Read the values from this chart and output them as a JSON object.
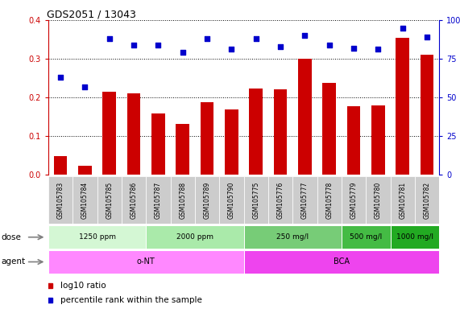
{
  "title": "GDS2051 / 13043",
  "samples": [
    "GSM105783",
    "GSM105784",
    "GSM105785",
    "GSM105786",
    "GSM105787",
    "GSM105788",
    "GSM105789",
    "GSM105790",
    "GSM105775",
    "GSM105776",
    "GSM105777",
    "GSM105778",
    "GSM105779",
    "GSM105780",
    "GSM105781",
    "GSM105782"
  ],
  "log10_ratio": [
    0.048,
    0.022,
    0.215,
    0.21,
    0.158,
    0.132,
    0.188,
    0.168,
    0.222,
    0.22,
    0.3,
    0.238,
    0.178,
    0.179,
    0.355,
    0.31
  ],
  "percentile_rank": [
    63,
    57,
    88,
    84,
    84,
    79,
    88,
    81,
    88,
    83,
    90,
    84,
    82,
    81,
    95,
    89
  ],
  "bar_color": "#cc0000",
  "dot_color": "#0000cc",
  "ylim_left": [
    0,
    0.4
  ],
  "ylim_right": [
    0,
    100
  ],
  "yticks_left": [
    0,
    0.1,
    0.2,
    0.3,
    0.4
  ],
  "yticks_right": [
    0,
    25,
    50,
    75,
    100
  ],
  "dose_groups": [
    {
      "label": "1250 ppm",
      "start": 0,
      "end": 4,
      "color": "#d4f7d4"
    },
    {
      "label": "2000 ppm",
      "start": 4,
      "end": 8,
      "color": "#aaeaaa"
    },
    {
      "label": "250 mg/l",
      "start": 8,
      "end": 12,
      "color": "#77cc77"
    },
    {
      "label": "500 mg/l",
      "start": 12,
      "end": 14,
      "color": "#44bb44"
    },
    {
      "label": "1000 mg/l",
      "start": 14,
      "end": 16,
      "color": "#22aa22"
    }
  ],
  "agent_groups": [
    {
      "label": "o-NT",
      "start": 0,
      "end": 8,
      "color": "#ff88ff"
    },
    {
      "label": "BCA",
      "start": 8,
      "end": 16,
      "color": "#ee44ee"
    }
  ],
  "dose_row_label": "dose",
  "agent_row_label": "agent",
  "legend_bar_label": "log10 ratio",
  "legend_dot_label": "percentile rank within the sample",
  "background_color": "#ffffff",
  "xtick_bg_color": "#cccccc",
  "grid_color": "#000000",
  "tick_color_left": "#cc0000",
  "tick_color_right": "#0000cc"
}
